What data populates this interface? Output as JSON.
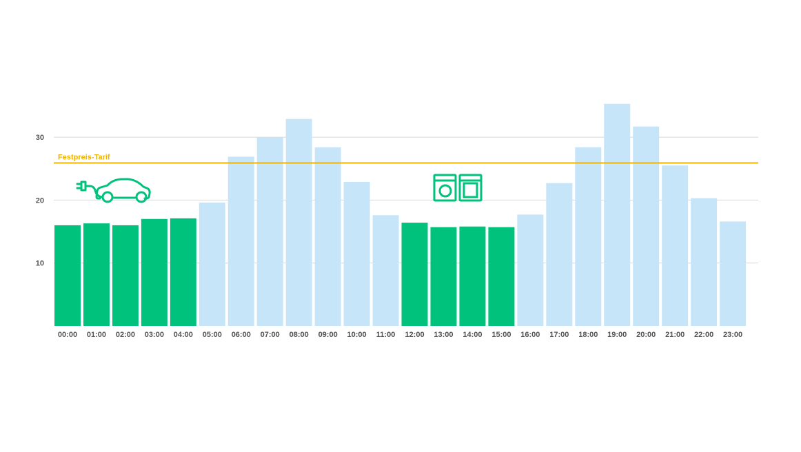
{
  "chart_data": {
    "type": "bar",
    "categories": [
      "00:00",
      "01:00",
      "02:00",
      "03:00",
      "04:00",
      "05:00",
      "06:00",
      "07:00",
      "08:00",
      "09:00",
      "10:00",
      "11:00",
      "12:00",
      "13:00",
      "14:00",
      "15:00",
      "16:00",
      "17:00",
      "18:00",
      "19:00",
      "20:00",
      "21:00",
      "22:00",
      "23:00"
    ],
    "values": [
      16.0,
      16.3,
      16.0,
      17.0,
      17.1,
      19.6,
      26.9,
      30.0,
      32.9,
      28.4,
      22.9,
      17.6,
      16.4,
      15.7,
      15.8,
      15.7,
      17.7,
      22.7,
      28.4,
      35.3,
      31.7,
      25.5,
      20.3,
      16.6
    ],
    "highlighted": [
      true,
      true,
      true,
      true,
      true,
      false,
      false,
      false,
      false,
      false,
      false,
      false,
      true,
      true,
      true,
      true,
      false,
      false,
      false,
      false,
      false,
      false,
      false,
      false
    ],
    "y_ticks": [
      10,
      20,
      30
    ],
    "ylim": [
      0,
      35.3
    ],
    "grid": true,
    "reference_line": {
      "label": "Festpreis-Tarif",
      "value": 25.9,
      "color": "#f0b400"
    },
    "colors": {
      "highlight": "#00c27c",
      "normal": "#c7e5f8",
      "grid": "#d9d9d9",
      "icon": "#00c27c"
    },
    "icons": [
      {
        "name": "electric-car-icon",
        "near_category": "02:00"
      },
      {
        "name": "washing-machine-dishwasher-icon",
        "near_category": "13:00"
      }
    ],
    "title": "",
    "xlabel": "",
    "ylabel": ""
  }
}
